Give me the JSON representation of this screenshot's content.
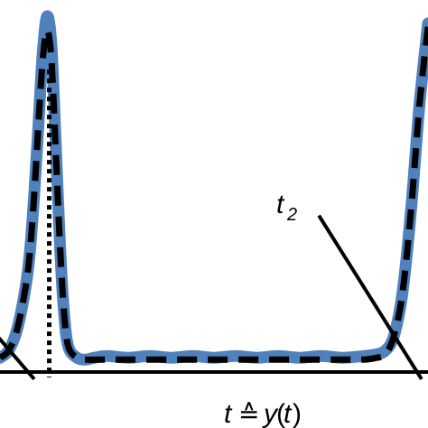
{
  "chart_data": {
    "type": "line",
    "title": "",
    "xlabel": "",
    "ylabel": "",
    "axis_label": {
      "main": "t",
      "operator": "≙",
      "func": "y",
      "arg_open": "(",
      "arg": "t",
      "arg_close": ")"
    },
    "annotations": [
      {
        "base": "t",
        "sub": "2",
        "x": 0.82,
        "y": 0.5
      }
    ],
    "xlim": [
      0,
      1
    ],
    "ylim": [
      0,
      1
    ],
    "grid": false,
    "legend": "none",
    "colors": {
      "measured": "#4f81bd",
      "fit": "#000000",
      "marker": "#000000",
      "tangent": "#000000",
      "axis": "#000000"
    },
    "series": [
      {
        "style": "thick-solid",
        "x": [
          0.0,
          0.02,
          0.04,
          0.06,
          0.07,
          0.08,
          0.09,
          0.1,
          0.11,
          0.12,
          0.13,
          0.14,
          0.15,
          0.16,
          0.18,
          0.2,
          0.22,
          0.25,
          0.3,
          0.35,
          0.4,
          0.45,
          0.5,
          0.55,
          0.6,
          0.65,
          0.7,
          0.75,
          0.8,
          0.85,
          0.88,
          0.9,
          0.92,
          0.94,
          0.96,
          0.98,
          1.0
        ],
        "y": [
          0.04,
          0.06,
          0.12,
          0.24,
          0.34,
          0.5,
          0.7,
          0.9,
          1.0,
          0.92,
          0.65,
          0.36,
          0.16,
          0.07,
          0.04,
          0.035,
          0.04,
          0.045,
          0.04,
          0.045,
          0.04,
          0.045,
          0.04,
          0.045,
          0.04,
          0.045,
          0.04,
          0.045,
          0.04,
          0.045,
          0.05,
          0.06,
          0.1,
          0.22,
          0.45,
          0.75,
          0.98
        ]
      },
      {
        "style": "dashed",
        "x": [
          0.0,
          0.02,
          0.04,
          0.06,
          0.07,
          0.08,
          0.09,
          0.1,
          0.11,
          0.12,
          0.13,
          0.14,
          0.15,
          0.16,
          0.18,
          0.2,
          0.25,
          0.3,
          0.4,
          0.5,
          0.6,
          0.7,
          0.8,
          0.85,
          0.88,
          0.9,
          0.92,
          0.94,
          0.96,
          0.98,
          1.0
        ],
        "y": [
          0.04,
          0.06,
          0.12,
          0.24,
          0.34,
          0.5,
          0.7,
          0.88,
          0.96,
          0.88,
          0.63,
          0.36,
          0.16,
          0.07,
          0.04,
          0.035,
          0.035,
          0.035,
          0.035,
          0.035,
          0.035,
          0.035,
          0.035,
          0.035,
          0.04,
          0.05,
          0.1,
          0.22,
          0.45,
          0.75,
          0.97
        ]
      }
    ],
    "vertical_marker": {
      "x": 0.115,
      "style": "dotted"
    },
    "tangents": [
      {
        "from": [
          -0.02,
          0.12
        ],
        "to": [
          0.08,
          -0.02
        ]
      },
      {
        "from": [
          0.745,
          0.44
        ],
        "to": [
          0.985,
          -0.02
        ]
      }
    ]
  }
}
